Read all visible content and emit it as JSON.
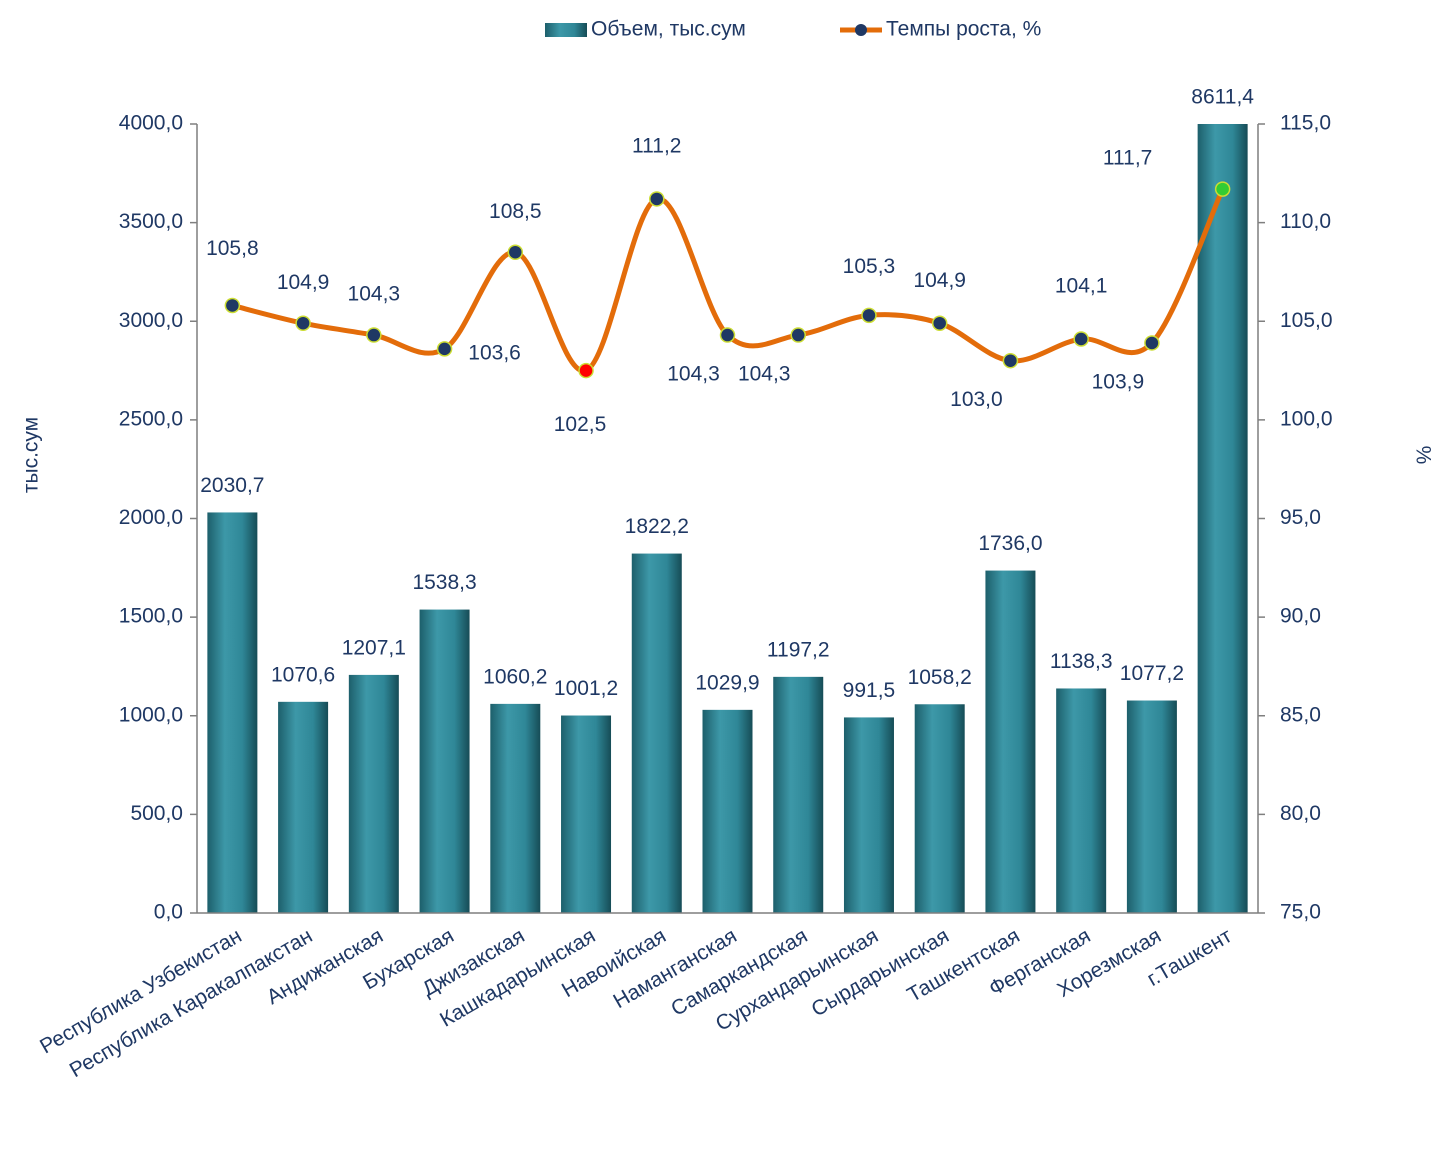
{
  "chart_data": {
    "type": "bar_line",
    "y_label": "тыс.сум",
    "y2_label": "%",
    "categories": [
      "Республика Узбекистан",
      "Республика Каракалпакстан",
      "Андижанская",
      "Бухарская",
      "Джизакская",
      "Кашкадарьинская",
      "Навоийская",
      "Наманганская",
      "Самаркандская",
      "Сурхандарьинская",
      "Сырдарьинская",
      "Ташкентская",
      "Ферганская",
      "Хорезмская",
      "г.Ташкент"
    ],
    "series": [
      {
        "name": "Объем, тыс.сум",
        "type": "bar",
        "color": "#2f8797",
        "values": [
          2030.7,
          1070.6,
          1207.1,
          1538.3,
          1060.2,
          1001.2,
          1822.2,
          1029.9,
          1197.2,
          991.5,
          1058.2,
          1736.0,
          1138.3,
          1077.2,
          8611.4
        ],
        "value_labels": [
          "2030,7",
          "1070,6",
          "1207,1",
          "1538,3",
          "1060,2",
          "1001,2",
          "1822,2",
          "1029,9",
          "1197,2",
          "991,5",
          "1058,2",
          "1736,0",
          "1138,3",
          "1077,2",
          "8611,4"
        ]
      },
      {
        "name": "Темпы  роста, %",
        "type": "line",
        "axis": "y2",
        "color": "#e36c0a",
        "marker_colors": [
          "#1f3864",
          "#1f3864",
          "#1f3864",
          "#1f3864",
          "#1f3864",
          "#ff0000",
          "#1f3864",
          "#1f3864",
          "#1f3864",
          "#1f3864",
          "#1f3864",
          "#1f3864",
          "#1f3864",
          "#1f3864",
          "#33cc33"
        ],
        "values": [
          105.8,
          104.9,
          104.3,
          103.6,
          108.5,
          102.5,
          111.2,
          104.3,
          104.3,
          105.3,
          104.9,
          103.0,
          104.1,
          103.9,
          111.7
        ],
        "value_labels": [
          "105,8",
          "104,9",
          "104,3",
          "103,6",
          "108,5",
          "102,5",
          "111,2",
          "104,3",
          "104,3",
          "105,3",
          "104,9",
          "103,0",
          "104,1",
          "103,9",
          "111,7"
        ]
      }
    ],
    "ylim": [
      0,
      4000
    ],
    "yticks": [
      {
        "value": 0,
        "label": "0,0"
      },
      {
        "value": 500,
        "label": "500,0"
      },
      {
        "value": 1000,
        "label": "1000,0"
      },
      {
        "value": 1500,
        "label": "1500,0"
      },
      {
        "value": 2000,
        "label": "2000,0"
      },
      {
        "value": 2500,
        "label": "2500,0"
      },
      {
        "value": 3000,
        "label": "3000,0"
      },
      {
        "value": 3500,
        "label": "3500,0"
      },
      {
        "value": 4000,
        "label": "4000,0"
      }
    ],
    "y2lim": [
      75,
      115
    ],
    "y2ticks": [
      {
        "value": 75,
        "label": "75,0"
      },
      {
        "value": 80,
        "label": "80,0"
      },
      {
        "value": 85,
        "label": "85,0"
      },
      {
        "value": 90,
        "label": "90,0"
      },
      {
        "value": 95,
        "label": "95,0"
      },
      {
        "value": 100,
        "label": "100,0"
      },
      {
        "value": 105,
        "label": "105,0"
      },
      {
        "value": 110,
        "label": "110,0"
      },
      {
        "value": 115,
        "label": "115,0"
      }
    ],
    "legend": "top"
  }
}
